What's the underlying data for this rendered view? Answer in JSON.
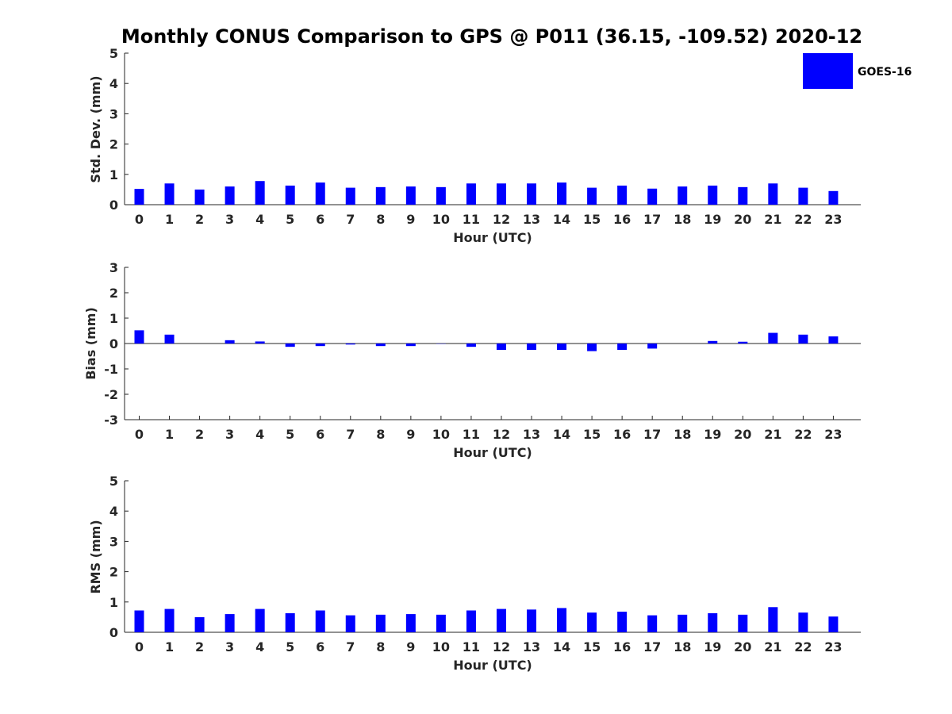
{
  "title": "Monthly CONUS Comparison to GPS @ P011 (36.15, -109.52) 2020-12",
  "legend": {
    "label": "GOES-16",
    "color": "#0000ff"
  },
  "bar_color": "#0000ff",
  "chart_data": [
    {
      "type": "bar",
      "xlabel": "Hour (UTC)",
      "ylabel": "Std. Dev. (mm)",
      "ylim": [
        0,
        5
      ],
      "yticks": [
        0,
        1,
        2,
        3,
        4,
        5
      ],
      "categories": [
        "0",
        "1",
        "2",
        "3",
        "4",
        "5",
        "6",
        "7",
        "8",
        "9",
        "10",
        "11",
        "12",
        "13",
        "14",
        "15",
        "16",
        "17",
        "18",
        "19",
        "20",
        "21",
        "22",
        "23"
      ],
      "series": [
        {
          "name": "GOES-16",
          "values": [
            0.52,
            0.7,
            0.5,
            0.6,
            0.78,
            0.63,
            0.73,
            0.56,
            0.58,
            0.6,
            0.58,
            0.7,
            0.7,
            0.7,
            0.73,
            0.56,
            0.63,
            0.53,
            0.6,
            0.63,
            0.58,
            0.7,
            0.56,
            0.45
          ]
        }
      ]
    },
    {
      "type": "bar",
      "xlabel": "Hour (UTC)",
      "ylabel": "Bias (mm)",
      "ylim": [
        -3,
        3
      ],
      "yticks": [
        -3,
        -2,
        -1,
        0,
        1,
        2,
        3
      ],
      "categories": [
        "0",
        "1",
        "2",
        "3",
        "4",
        "5",
        "6",
        "7",
        "8",
        "9",
        "10",
        "11",
        "12",
        "13",
        "14",
        "15",
        "16",
        "17",
        "18",
        "19",
        "20",
        "21",
        "22",
        "23"
      ],
      "series": [
        {
          "name": "GOES-16",
          "values": [
            0.52,
            0.35,
            0.0,
            0.13,
            0.08,
            -0.13,
            -0.1,
            -0.04,
            -0.1,
            -0.1,
            -0.01,
            -0.13,
            -0.25,
            -0.25,
            -0.25,
            -0.3,
            -0.25,
            -0.2,
            0.0,
            0.1,
            0.07,
            0.42,
            0.35,
            0.28
          ]
        }
      ]
    },
    {
      "type": "bar",
      "xlabel": "Hour (UTC)",
      "ylabel": "RMS (mm)",
      "ylim": [
        0,
        5
      ],
      "yticks": [
        0,
        1,
        2,
        3,
        4,
        5
      ],
      "categories": [
        "0",
        "1",
        "2",
        "3",
        "4",
        "5",
        "6",
        "7",
        "8",
        "9",
        "10",
        "11",
        "12",
        "13",
        "14",
        "15",
        "16",
        "17",
        "18",
        "19",
        "20",
        "21",
        "22",
        "23"
      ],
      "series": [
        {
          "name": "GOES-16",
          "values": [
            0.72,
            0.77,
            0.5,
            0.6,
            0.77,
            0.63,
            0.72,
            0.56,
            0.58,
            0.6,
            0.58,
            0.72,
            0.77,
            0.75,
            0.8,
            0.65,
            0.68,
            0.56,
            0.58,
            0.63,
            0.58,
            0.83,
            0.65,
            0.52
          ]
        }
      ]
    }
  ]
}
